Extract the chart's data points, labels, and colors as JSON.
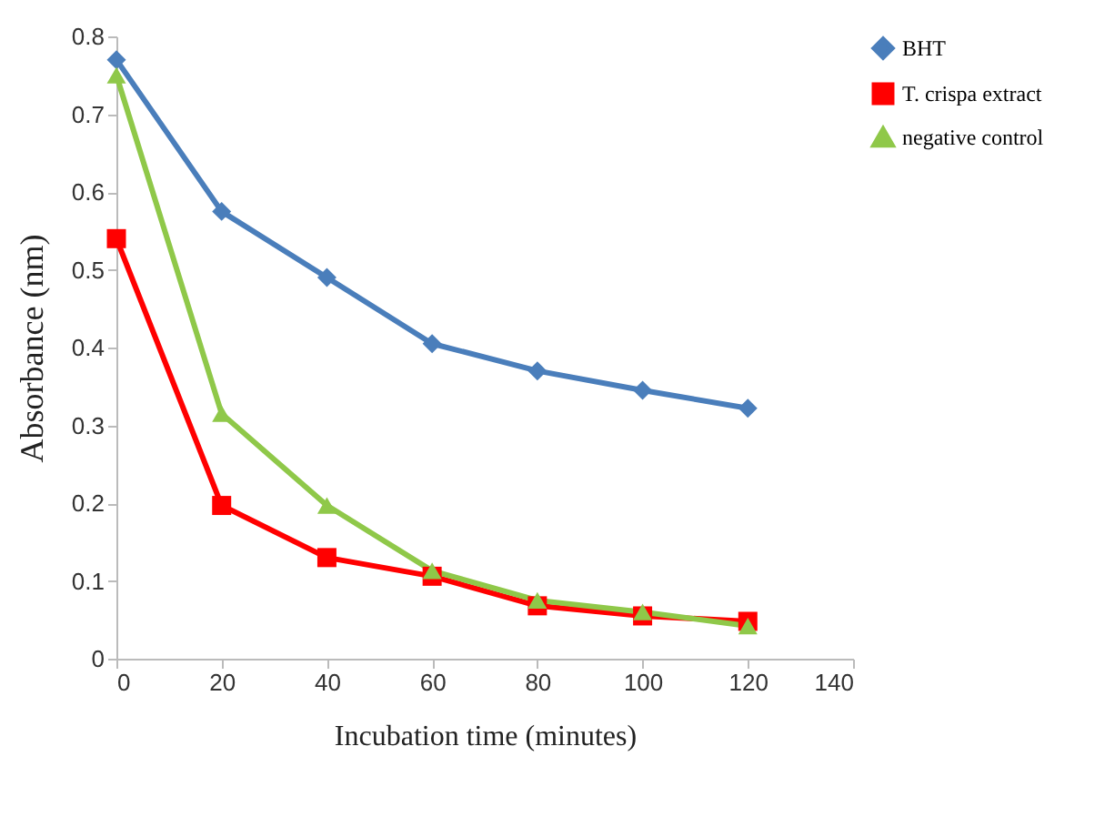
{
  "chart_data": {
    "type": "line",
    "xlabel": "Incubation time (minutes)",
    "ylabel": "Absorbance (nm)",
    "x": [
      0,
      20,
      40,
      60,
      80,
      100,
      120
    ],
    "series": [
      {
        "name": "BHT",
        "color": "#4a7ebb",
        "marker": "diamond",
        "values": [
          0.77,
          0.575,
          0.49,
          0.405,
          0.37,
          0.345,
          0.322
        ]
      },
      {
        "name": "T. crispa extract",
        "color": "#ff0000",
        "marker": "square",
        "values": [
          0.54,
          0.197,
          0.13,
          0.106,
          0.068,
          0.055,
          0.048
        ]
      },
      {
        "name": "negative control",
        "color": "#8fc849",
        "marker": "triangle",
        "values": [
          0.75,
          0.315,
          0.197,
          0.113,
          0.075,
          0.06,
          0.042
        ]
      }
    ],
    "xlim": [
      0,
      140
    ],
    "xticks": [
      0,
      20,
      40,
      60,
      80,
      100,
      120,
      140
    ],
    "ylim": [
      0,
      0.8
    ],
    "yticks": [
      0,
      0.1,
      0.2,
      0.3,
      0.4,
      0.5,
      0.6,
      0.7,
      0.8
    ],
    "grid": false,
    "legend": "right",
    "line_style": "solid"
  }
}
